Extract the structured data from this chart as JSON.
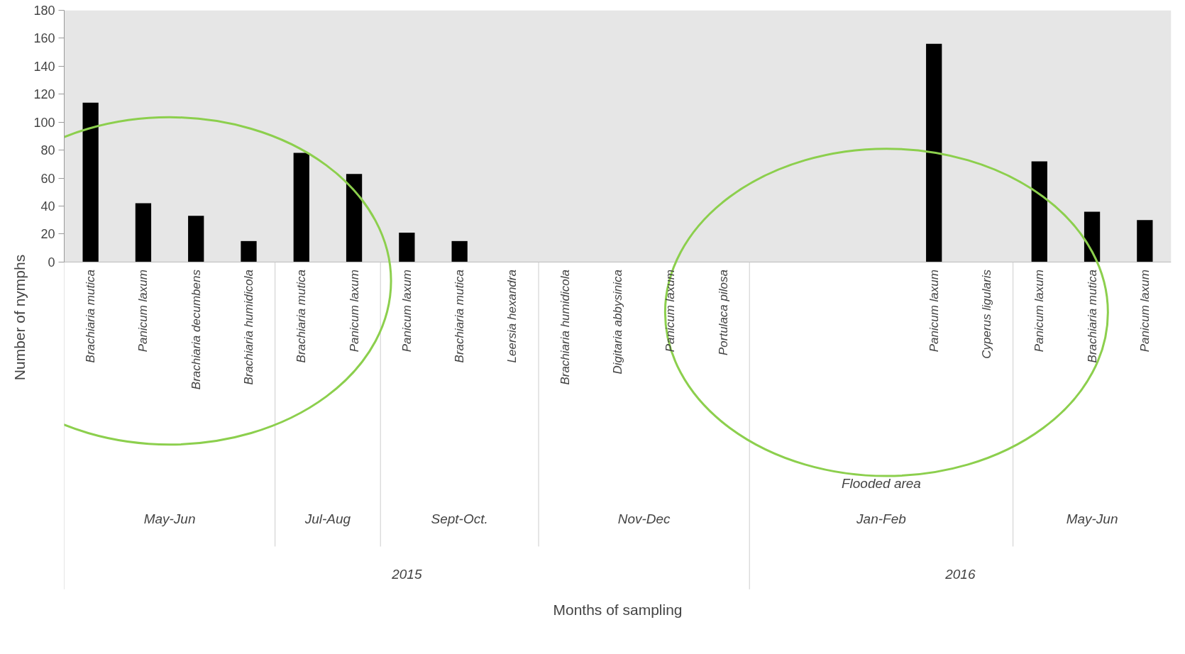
{
  "chart_data": {
    "type": "bar",
    "ylabel": "Number of nymphs",
    "categories": [
      "Brachiaria mutica",
      "Panicum laxum",
      "Brachiaria decumbens",
      "Brachiaria humidicola",
      "Brachiaria mutica",
      "Panicum laxum",
      "Panicum laxum",
      "Brachiaria mutica",
      "Leersia hexandra",
      "Brachiaria humidicola",
      "Digitaria abbysinica",
      "Panicum laxum",
      "Portulaca pilosa",
      null,
      null,
      null,
      "Panicum laxum",
      "Cyperus ligularis",
      "Panicum laxum",
      "Brachiaria mutica",
      "Panicum laxum"
    ],
    "values": [
      114,
      42,
      33,
      15,
      78,
      63,
      21,
      15,
      0,
      0,
      0,
      0,
      0,
      0,
      0,
      0,
      156,
      0,
      72,
      36,
      30
    ],
    "color": "#000000",
    "ylim": [
      0,
      180
    ],
    "yticks": [
      0,
      20,
      40,
      60,
      80,
      100,
      120,
      140,
      160,
      180
    ],
    "annotations": [
      "May-Jun",
      "Jul-Aug",
      "Sept-Oct.",
      "Nov-Dec",
      "Jan-Feb",
      "May-Jun",
      "Flooded area",
      "2015",
      "2016",
      "Months of sampling"
    ]
  }
}
